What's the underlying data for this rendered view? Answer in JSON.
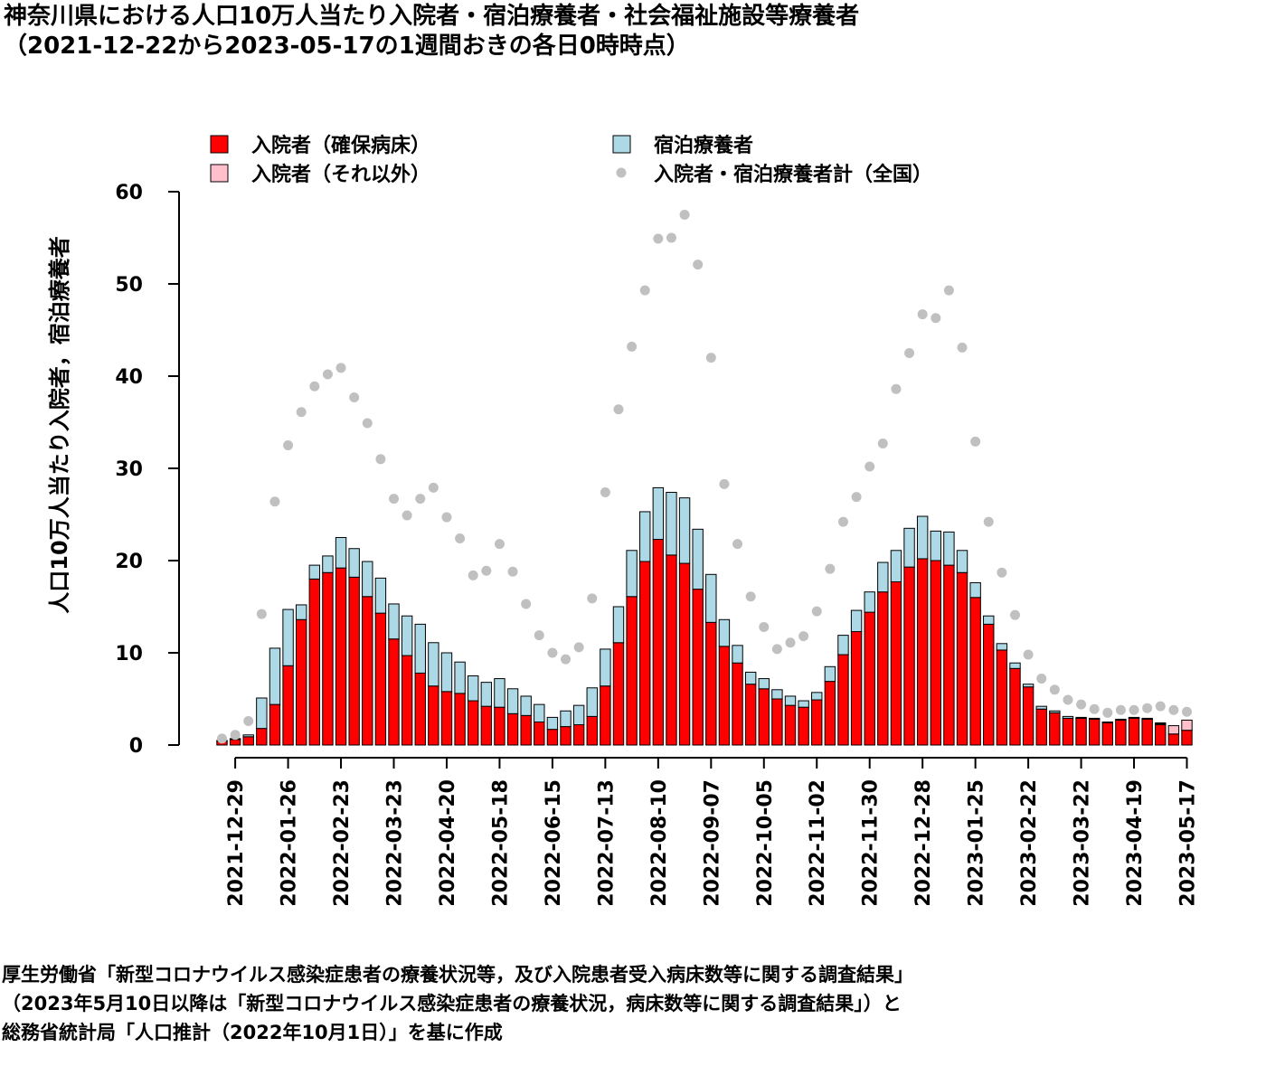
{
  "title_line1": "神奈川県における人口10万人当たり入院者・宿泊療養者・社会福祉施設等療養者",
  "title_line2": "（2021-12-22から2023-05-17の1週間おきの各日0時時点）",
  "source_line1": "厚生労働省「新型コロナウイルス感染症患者の療養状況等，及び入院患者受入病床数等に関する調査結果」",
  "source_line2": "（2023年5月10日以降は「新型コロナウイルス感染症患者の療養状況，病床数等に関する調査結果」）と",
  "source_line3": "総務省統計局「人口推計（2022年10月1日）」を基に作成",
  "chart_data": {
    "type": "bar",
    "stacked": true,
    "ylabel": "人口10万人当たり入院者，宿泊療養者",
    "ylim": [
      0,
      60
    ],
    "yticks": [
      0,
      10,
      20,
      30,
      40,
      50,
      60
    ],
    "x_tick_labels": [
      "2021-12-29",
      "2022-01-26",
      "2022-02-23",
      "2022-03-23",
      "2022-04-20",
      "2022-05-18",
      "2022-06-15",
      "2022-07-13",
      "2022-08-10",
      "2022-09-07",
      "2022-10-05",
      "2022-11-02",
      "2022-11-30",
      "2022-12-28",
      "2023-01-25",
      "2023-02-22",
      "2023-03-22",
      "2023-04-19",
      "2023-05-17"
    ],
    "x_tick_every": 4,
    "x_tick_offset": 1,
    "legend": [
      {
        "label": "入院者（確保病床）",
        "color": "#ff0000",
        "kind": "bar"
      },
      {
        "label": "宿泊療養者",
        "color": "#add8e6",
        "kind": "bar"
      },
      {
        "label": "入院者（それ以外）",
        "color": "#ffc0cb",
        "kind": "bar"
      },
      {
        "label": "入院者・宿泊療養者計（全国）",
        "color": "#c0c0c0",
        "kind": "point"
      }
    ],
    "dates": [
      "2021-12-22",
      "2021-12-29",
      "2022-01-05",
      "2022-01-12",
      "2022-01-19",
      "2022-01-26",
      "2022-02-02",
      "2022-02-09",
      "2022-02-16",
      "2022-02-23",
      "2022-03-02",
      "2022-03-09",
      "2022-03-16",
      "2022-03-23",
      "2022-03-30",
      "2022-04-06",
      "2022-04-13",
      "2022-04-20",
      "2022-04-27",
      "2022-05-04",
      "2022-05-11",
      "2022-05-18",
      "2022-05-25",
      "2022-06-01",
      "2022-06-08",
      "2022-06-15",
      "2022-06-22",
      "2022-06-29",
      "2022-07-06",
      "2022-07-13",
      "2022-07-20",
      "2022-07-27",
      "2022-08-03",
      "2022-08-10",
      "2022-08-17",
      "2022-08-24",
      "2022-08-31",
      "2022-09-07",
      "2022-09-14",
      "2022-09-21",
      "2022-09-28",
      "2022-10-05",
      "2022-10-12",
      "2022-10-19",
      "2022-10-26",
      "2022-11-02",
      "2022-11-09",
      "2022-11-16",
      "2022-11-23",
      "2022-11-30",
      "2022-12-07",
      "2022-12-14",
      "2022-12-21",
      "2022-12-28",
      "2023-01-04",
      "2023-01-11",
      "2023-01-18",
      "2023-01-25",
      "2023-02-01",
      "2023-02-08",
      "2023-02-15",
      "2023-02-22",
      "2023-03-01",
      "2023-03-08",
      "2023-03-15",
      "2023-03-22",
      "2023-03-29",
      "2023-04-05",
      "2023-04-12",
      "2023-04-19",
      "2023-04-26",
      "2023-05-03",
      "2023-05-10",
      "2023-05-17"
    ],
    "series": [
      {
        "name": "入院者（確保病床）",
        "color": "#ff0000",
        "values": [
          0.4,
          0.6,
          0.9,
          1.8,
          4.4,
          8.6,
          13.6,
          18.0,
          18.7,
          19.2,
          18.2,
          16.1,
          14.3,
          11.5,
          9.7,
          7.8,
          6.4,
          5.8,
          5.6,
          4.8,
          4.2,
          4.1,
          3.4,
          3.2,
          2.5,
          1.7,
          2.0,
          2.2,
          3.1,
          6.4,
          11.1,
          16.1,
          19.9,
          22.3,
          20.6,
          19.7,
          16.9,
          13.3,
          10.7,
          8.9,
          6.6,
          6.1,
          5.0,
          4.3,
          4.1,
          4.9,
          6.9,
          9.8,
          12.3,
          14.4,
          16.6,
          17.7,
          19.3,
          20.2,
          20.0,
          19.5,
          18.7,
          16.0,
          13.1,
          10.3,
          8.3,
          6.3,
          3.9,
          3.5,
          2.9,
          2.9,
          2.8,
          2.4,
          2.7,
          2.9,
          2.8,
          2.2,
          1.2,
          1.6
        ]
      },
      {
        "name": "宿泊療養者",
        "color": "#add8e6",
        "values": [
          0.1,
          0.1,
          0.2,
          3.3,
          6.1,
          6.1,
          1.6,
          1.5,
          1.8,
          3.3,
          3.1,
          3.8,
          3.8,
          3.8,
          4.3,
          5.3,
          4.7,
          4.2,
          3.4,
          2.7,
          2.6,
          3.1,
          2.7,
          2.1,
          1.9,
          1.3,
          1.7,
          2.1,
          3.1,
          4.0,
          3.9,
          5.0,
          5.4,
          5.6,
          6.8,
          7.1,
          6.5,
          5.2,
          2.9,
          1.9,
          1.3,
          1.1,
          1.0,
          1.0,
          0.7,
          0.8,
          1.6,
          2.1,
          2.3,
          2.2,
          3.2,
          3.4,
          4.2,
          4.6,
          3.2,
          3.6,
          2.4,
          1.6,
          0.9,
          0.7,
          0.6,
          0.3,
          0.3,
          0.2,
          0.2,
          0.1,
          0.1,
          0.1,
          0.1,
          0.1,
          0.1,
          0.1,
          0.0,
          0.0
        ]
      },
      {
        "name": "入院者（それ以外）",
        "color": "#ffc0cb",
        "values": [
          0,
          0,
          0,
          0,
          0,
          0,
          0,
          0,
          0,
          0,
          0,
          0,
          0,
          0,
          0,
          0,
          0,
          0,
          0,
          0,
          0,
          0,
          0,
          0,
          0,
          0,
          0,
          0,
          0,
          0,
          0,
          0,
          0,
          0,
          0,
          0,
          0,
          0,
          0,
          0,
          0,
          0,
          0,
          0,
          0,
          0,
          0,
          0,
          0,
          0,
          0,
          0,
          0,
          0,
          0,
          0,
          0,
          0,
          0,
          0,
          0,
          0,
          0,
          0,
          0,
          0,
          0,
          0,
          0,
          0,
          0,
          0.1,
          0.9,
          1.1
        ]
      },
      {
        "name": "入院者・宿泊療養者計（全国）",
        "color": "#c0c0c0",
        "kind": "point",
        "values": [
          0.7,
          1.1,
          2.6,
          14.2,
          26.4,
          32.5,
          36.1,
          38.9,
          40.2,
          40.9,
          37.7,
          34.9,
          31.0,
          26.7,
          24.9,
          26.7,
          27.9,
          24.7,
          22.4,
          18.4,
          18.9,
          21.8,
          18.8,
          15.3,
          11.9,
          10.0,
          9.3,
          10.6,
          15.9,
          27.4,
          36.4,
          43.2,
          49.3,
          54.9,
          55.0,
          57.5,
          52.1,
          42.0,
          28.3,
          21.8,
          16.1,
          12.8,
          10.4,
          11.1,
          11.8,
          14.5,
          19.1,
          24.2,
          26.9,
          30.2,
          32.7,
          38.6,
          42.5,
          46.7,
          46.3,
          49.3,
          43.1,
          32.9,
          24.2,
          18.7,
          14.1,
          9.8,
          7.2,
          6.0,
          4.9,
          4.4,
          3.9,
          3.5,
          3.8,
          3.8,
          4.0,
          4.2,
          3.8,
          3.6
        ]
      }
    ]
  }
}
